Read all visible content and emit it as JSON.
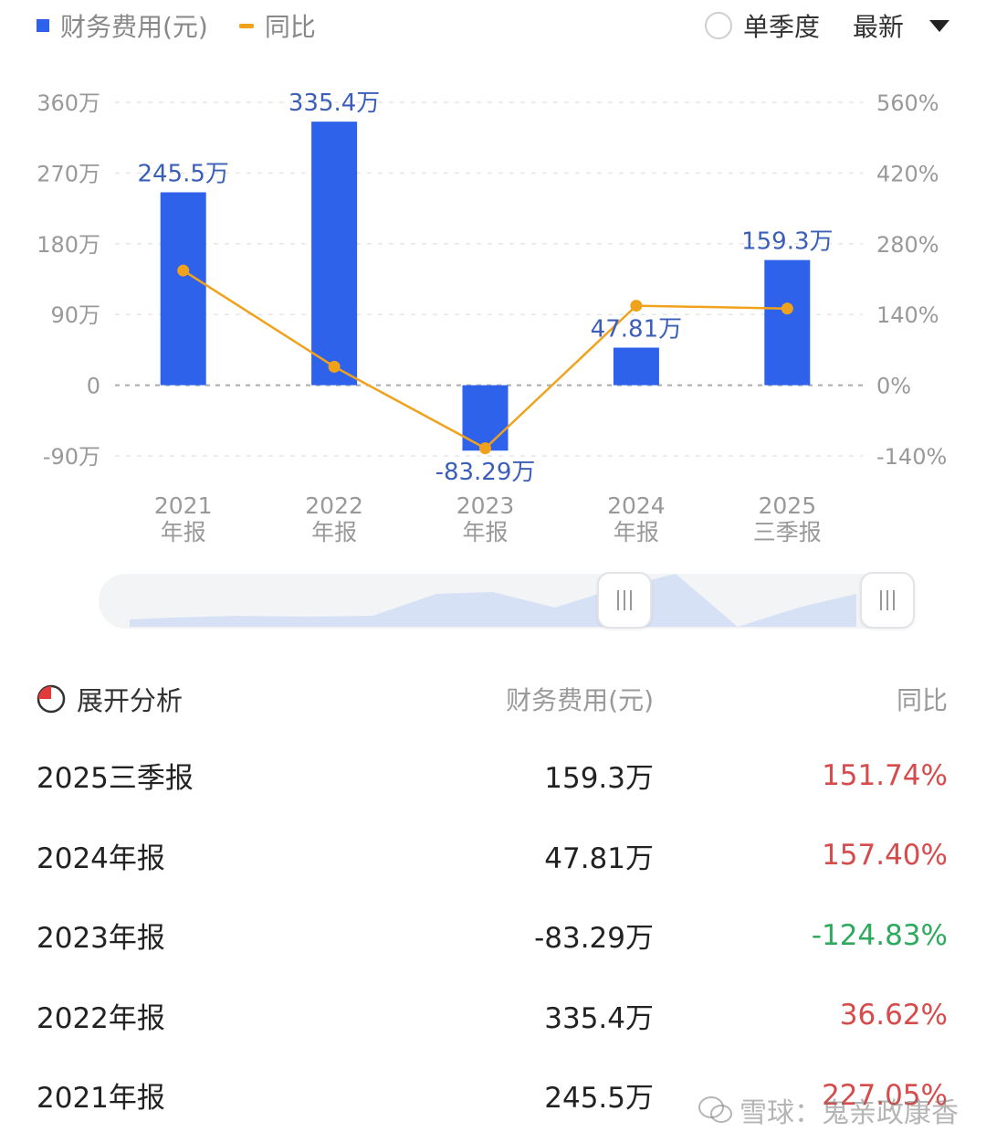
{
  "legend": {
    "series1": "财务费用(元)",
    "series2": "同比"
  },
  "controls": {
    "single_quarter": "单季度",
    "latest": "最新"
  },
  "colors": {
    "bar": "#2f62ea",
    "line": "#f0a21c",
    "up": "#d64b4b",
    "down": "#2eaa5e"
  },
  "chart_data": {
    "type": "bar",
    "categories": [
      [
        "2021",
        "年报"
      ],
      [
        "2022",
        "年报"
      ],
      [
        "2023",
        "年报"
      ],
      [
        "2024",
        "年报"
      ],
      [
        "2025",
        "三季报"
      ]
    ],
    "series": [
      {
        "name": "财务费用(元)",
        "type": "bar",
        "values": [
          245.5,
          335.4,
          -83.29,
          47.81,
          159.3
        ],
        "labels": [
          "245.5万",
          "335.4万",
          "-83.29万",
          "47.81万",
          "159.3万"
        ]
      },
      {
        "name": "同比",
        "type": "line",
        "values": [
          227.05,
          36.62,
          -124.83,
          157.4,
          151.74
        ]
      }
    ],
    "y_left": {
      "ticks": [
        360,
        270,
        180,
        90,
        0,
        -90
      ],
      "tick_labels": [
        "360万",
        "270万",
        "180万",
        "90万",
        "0",
        "-90万"
      ],
      "range": [
        -90,
        360
      ]
    },
    "y_right": {
      "ticks": [
        560,
        420,
        280,
        140,
        0,
        -140
      ],
      "tick_labels": [
        "560%",
        "420%",
        "280%",
        "140%",
        "0%",
        "-140%"
      ],
      "range": [
        -140,
        560
      ]
    },
    "grid": "dashed horizontal"
  },
  "table": {
    "header": {
      "expand": "展开分析",
      "value": "财务费用(元)",
      "yoy": "同比"
    },
    "rows": [
      {
        "period": "2025三季报",
        "value": "159.3万",
        "yoy": "151.74%",
        "dir": "up"
      },
      {
        "period": "2024年报",
        "value": "47.81万",
        "yoy": "157.40%",
        "dir": "up"
      },
      {
        "period": "2023年报",
        "value": "-83.29万",
        "yoy": "-124.83%",
        "dir": "down"
      },
      {
        "period": "2022年报",
        "value": "335.4万",
        "yoy": "36.62%",
        "dir": "up"
      },
      {
        "period": "2021年报",
        "value": "245.5万",
        "yoy": "227.05%",
        "dir": "up"
      }
    ]
  },
  "watermark": {
    "text": "雪球：鬼亲政康香",
    "icon": "wechat-icon"
  }
}
